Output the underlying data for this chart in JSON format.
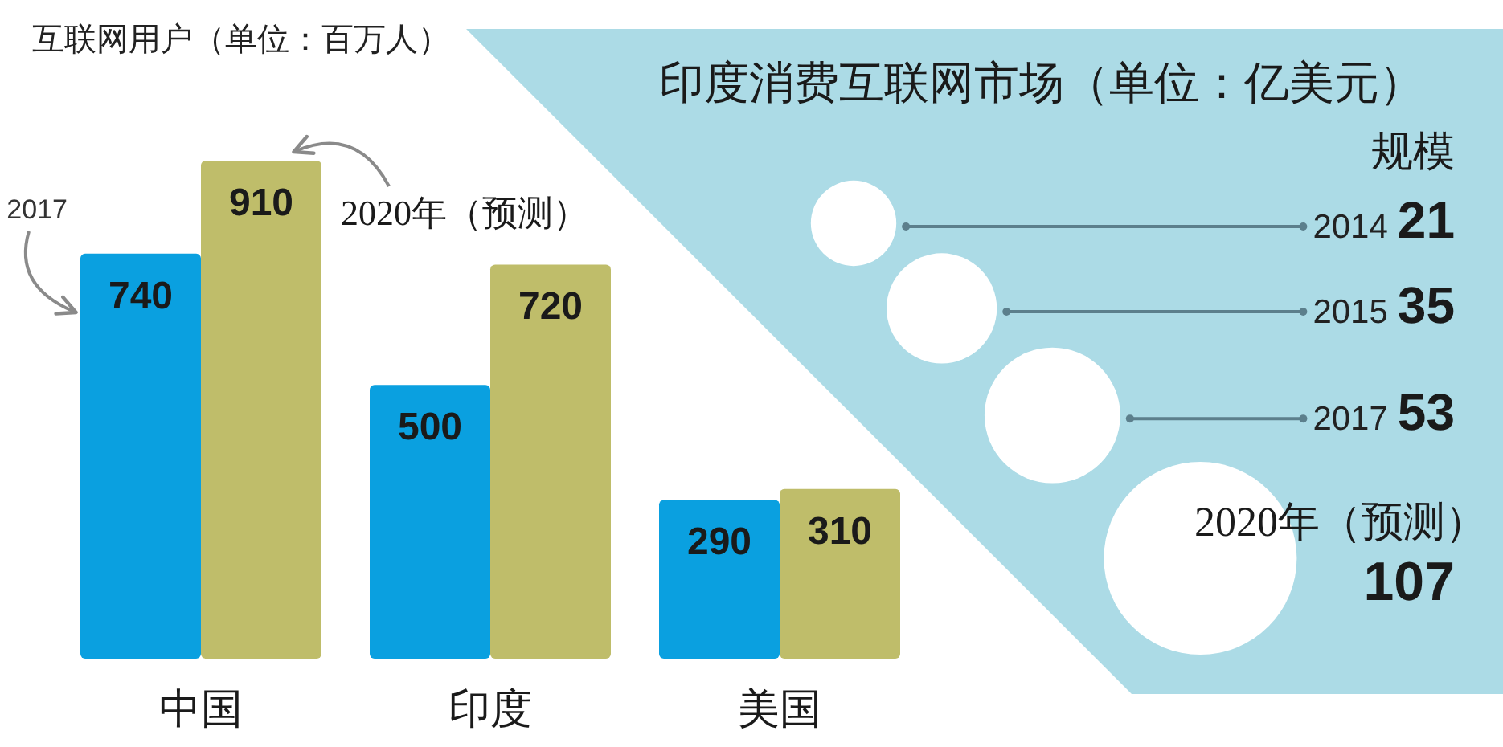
{
  "chart_data": [
    {
      "type": "bar",
      "title": "互联网用户（单位：百万人）",
      "categories": [
        "中国",
        "印度",
        "美国"
      ],
      "series": [
        {
          "name": "2017",
          "color": "#0aa0e0",
          "values": [
            740,
            500,
            290
          ]
        },
        {
          "name": "2020年（预测）",
          "color": "#bfbd6a",
          "values": [
            910,
            720,
            310
          ]
        }
      ],
      "data_labels": true
    },
    {
      "type": "other",
      "title": "印度消费互联网市场（单位：亿美元）",
      "subtitle": "规模",
      "categories": [
        "2014",
        "2015",
        "2017",
        "2020年（预测）"
      ],
      "values": [
        21,
        35,
        53,
        107
      ],
      "color": "#ffffff",
      "data_labels": true
    }
  ]
}
